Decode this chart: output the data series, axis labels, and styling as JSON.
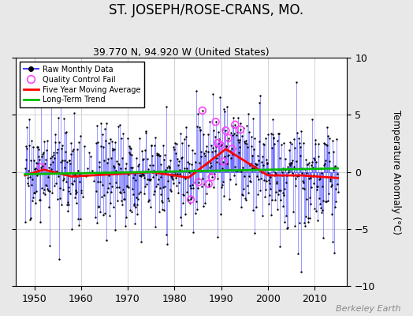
{
  "title": "ST. JOSEPH/ROSE-CRANS, MO.",
  "subtitle": "39.770 N, 94.920 W (United States)",
  "ylabel": "Temperature Anomaly (°C)",
  "watermark": "Berkeley Earth",
  "xlim": [
    1946,
    2017
  ],
  "ylim": [
    -10,
    10
  ],
  "yticks": [
    -10,
    -5,
    0,
    5,
    10
  ],
  "xticks": [
    1950,
    1960,
    1970,
    1980,
    1990,
    2000,
    2010
  ],
  "raw_color": "#4444ff",
  "ma_color": "#ff0000",
  "trend_color": "#00bb00",
  "qc_color": "#ff44ff",
  "plot_bg": "#ffffff",
  "fig_bg": "#e8e8e8",
  "title_fontsize": 12,
  "subtitle_fontsize": 9,
  "seed": 17
}
